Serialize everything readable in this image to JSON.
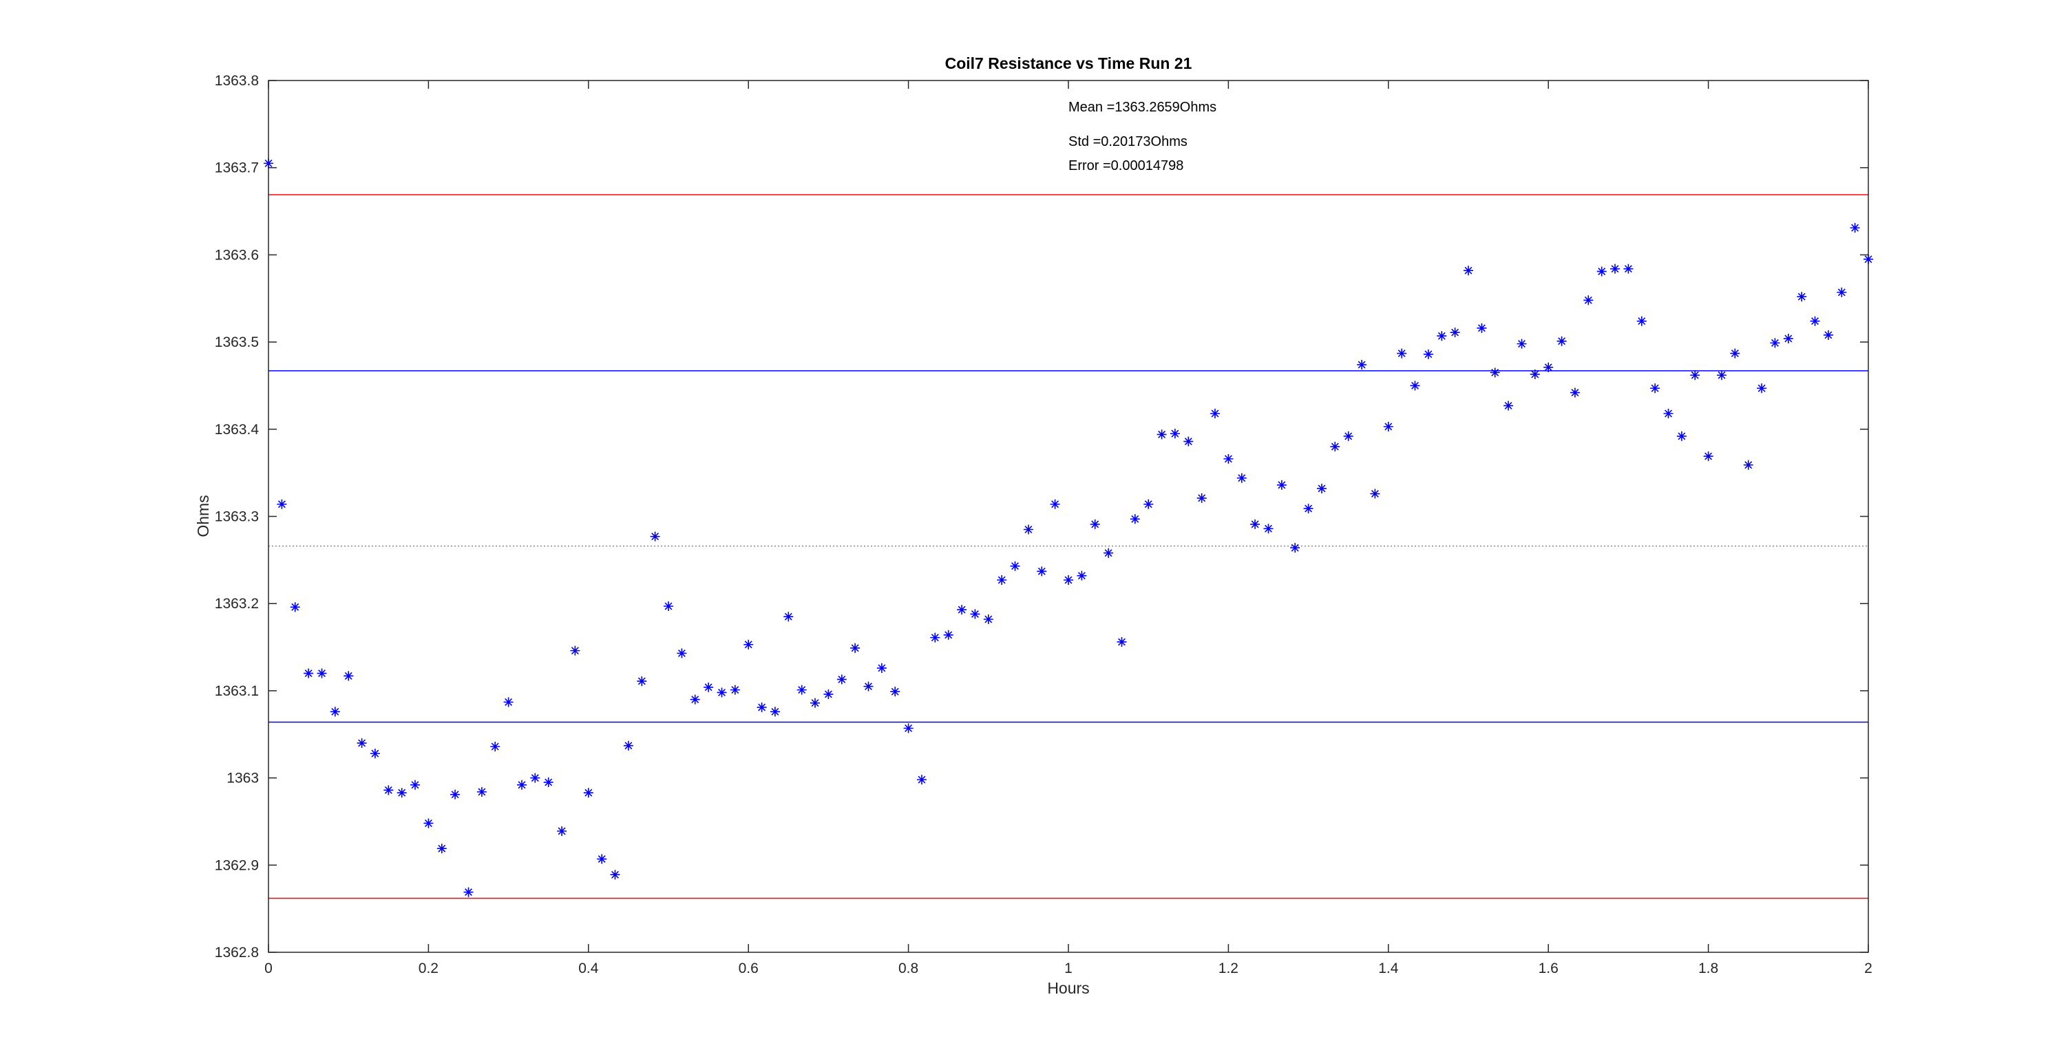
{
  "chart_data": {
    "type": "scatter",
    "title": "Coil7 Resistance vs Time Run 21",
    "xlabel": "Hours",
    "ylabel": "Ohms",
    "annotations": [
      "Mean =1363.2659Ohms",
      "Std =0.20173Ohms",
      "Error =0.00014798"
    ],
    "xlim": [
      0,
      2
    ],
    "ylim": [
      1362.8,
      1363.8
    ],
    "xticks": [
      0,
      0.2,
      0.4,
      0.6,
      0.8,
      1,
      1.2,
      1.4,
      1.6,
      1.8,
      2
    ],
    "yticks": [
      1362.8,
      1362.9,
      1363,
      1363.1,
      1363.2,
      1363.3,
      1363.4,
      1363.5,
      1363.6,
      1363.7,
      1363.8
    ],
    "grid": false,
    "reference_lines": [
      {
        "value": 1363.669,
        "color": "#ff0000",
        "style": "solid"
      },
      {
        "value": 1363.467,
        "color": "#0000ff",
        "style": "solid"
      },
      {
        "value": 1363.266,
        "color": "#888888",
        "style": "dotted"
      },
      {
        "value": 1363.064,
        "color": "#0000ff",
        "style": "solid"
      },
      {
        "value": 1362.862,
        "color": "#ff0000",
        "style": "solid"
      }
    ],
    "series": [
      {
        "color": "#0000ff",
        "marker": "asterisk",
        "x": [
          0,
          0.0167,
          0.0333,
          0.05,
          0.0667,
          0.0833,
          0.1,
          0.1167,
          0.1333,
          0.15,
          0.1667,
          0.1833,
          0.2,
          0.2167,
          0.2333,
          0.25,
          0.2667,
          0.2833,
          0.3,
          0.3167,
          0.3333,
          0.35,
          0.3667,
          0.3833,
          0.4,
          0.4167,
          0.4333,
          0.45,
          0.4667,
          0.4833,
          0.5,
          0.5167,
          0.5333,
          0.55,
          0.5667,
          0.5833,
          0.6,
          0.6167,
          0.6333,
          0.65,
          0.6667,
          0.6833,
          0.7,
          0.7167,
          0.7333,
          0.75,
          0.7667,
          0.7833,
          0.8,
          0.8167,
          0.8333,
          0.85,
          0.8667,
          0.8833,
          0.9,
          0.9167,
          0.9333,
          0.95,
          0.9667,
          0.9833,
          1,
          1.0167,
          1.0333,
          1.05,
          1.0667,
          1.0833,
          1.1,
          1.1167,
          1.1333,
          1.15,
          1.1667,
          1.1833,
          1.2,
          1.2167,
          1.2333,
          1.25,
          1.2667,
          1.2833,
          1.3,
          1.3167,
          1.3333,
          1.35,
          1.3667,
          1.3833,
          1.4,
          1.4167,
          1.4333,
          1.45,
          1.4667,
          1.4833,
          1.5,
          1.5167,
          1.5333,
          1.55,
          1.5667,
          1.5833,
          1.6,
          1.6167,
          1.6333,
          1.65,
          1.6667,
          1.6833,
          1.7,
          1.7167,
          1.7333,
          1.75,
          1.7667,
          1.7833,
          1.8,
          1.8167,
          1.8333,
          1.85,
          1.8667,
          1.8833,
          1.9,
          1.9167,
          1.9333,
          1.95,
          1.9667,
          1.9833,
          2
        ],
        "values": [
          1363.705,
          1363.314,
          1363.196,
          1363.12,
          1363.12,
          1363.076,
          1363.117,
          1363.04,
          1363.028,
          1362.986,
          1362.983,
          1362.992,
          1362.948,
          1362.919,
          1362.981,
          1362.869,
          1362.984,
          1363.036,
          1363.087,
          1362.992,
          1363.0,
          1362.995,
          1362.939,
          1363.146,
          1362.983,
          1362.907,
          1362.889,
          1363.037,
          1363.111,
          1363.277,
          1363.197,
          1363.143,
          1363.09,
          1363.104,
          1363.098,
          1363.101,
          1363.153,
          1363.081,
          1363.076,
          1363.185,
          1363.101,
          1363.086,
          1363.096,
          1363.113,
          1363.149,
          1363.105,
          1363.126,
          1363.099,
          1363.057,
          1362.998,
          1363.161,
          1363.164,
          1363.193,
          1363.188,
          1363.182,
          1363.227,
          1363.243,
          1363.285,
          1363.237,
          1363.314,
          1363.227,
          1363.232,
          1363.291,
          1363.258,
          1363.156,
          1363.297,
          1363.314,
          1363.394,
          1363.395,
          1363.386,
          1363.321,
          1363.418,
          1363.366,
          1363.344,
          1363.291,
          1363.286,
          1363.336,
          1363.264,
          1363.309,
          1363.332,
          1363.38,
          1363.392,
          1363.474,
          1363.326,
          1363.403,
          1363.487,
          1363.45,
          1363.486,
          1363.507,
          1363.511,
          1363.582,
          1363.516,
          1363.465,
          1363.427,
          1363.498,
          1363.463,
          1363.471,
          1363.501,
          1363.442,
          1363.548,
          1363.581,
          1363.584,
          1363.584,
          1363.524,
          1363.447,
          1363.418,
          1363.392,
          1363.462,
          1363.369,
          1363.462,
          1363.487,
          1363.359,
          1363.447,
          1363.499,
          1363.504,
          1363.552,
          1363.524,
          1363.508,
          1363.557,
          1363.631,
          1363.595
        ]
      }
    ]
  }
}
